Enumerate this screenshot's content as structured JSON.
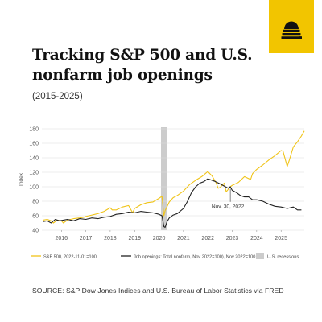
{
  "header": {
    "title": "Tracking S&P 500 and U.S. nonfarm job openings",
    "subtitle": "(2015-2025)"
  },
  "logo": {
    "icon": "beehive-icon",
    "background": "#f2c500"
  },
  "source": "SOURCE: S&P Dow Jones Indices and U.S. Bureau of Labor Statistics via FRED",
  "colors": {
    "sp500": "#f0c419",
    "jobs": "#222222",
    "recession": "#cccccc",
    "grid": "#d9d9d9",
    "axis_text": "#555555"
  },
  "chart_data": {
    "type": "line",
    "title": "",
    "xlabel": "",
    "ylabel": "Index",
    "xlim": [
      2015.2,
      2025.95
    ],
    "ylim": [
      40,
      180
    ],
    "yticks": [
      40,
      60,
      80,
      100,
      120,
      140,
      160,
      180
    ],
    "xticks": [
      {
        "label": "2016",
        "x": 2016.0
      },
      {
        "label": "2017",
        "x": 2017.0
      },
      {
        "label": "2018",
        "x": 2018.0
      },
      {
        "label": "2019",
        "x": 2019.0
      },
      {
        "label": "2020",
        "x": 2020.0
      },
      {
        "label": "2021",
        "x": 2021.0
      },
      {
        "label": "2022",
        "x": 2022.0
      },
      {
        "label": "2023",
        "x": 2023.0
      },
      {
        "label": "2024",
        "x": 2024.0
      },
      {
        "label": "2025",
        "x": 2025.0
      }
    ],
    "grid": true,
    "recessions": [
      {
        "label": "U.S. recessions",
        "start": 2020.08,
        "end": 2020.33
      }
    ],
    "annotations": [
      {
        "text": "Nov. 30, 2022",
        "x": 2022.92,
        "y": 97
      }
    ],
    "legend": {
      "position": "bottom",
      "items": [
        {
          "label": "S&P 500, 2022-11-01=100",
          "kind": "line",
          "series": 0
        },
        {
          "label": "Job openings: Total nonfarm, Nov 2022=100), Nov 2022=100",
          "kind": "line",
          "series": 1
        },
        {
          "label": "U.S. recessions",
          "kind": "box"
        }
      ]
    },
    "series": [
      {
        "name": "S&P 500, 2022-11-01=100",
        "x": [
          2015.25,
          2015.42,
          2015.58,
          2015.67,
          2015.83,
          2016.0,
          2016.08,
          2016.25,
          2016.5,
          2016.75,
          2016.92,
          2017.0,
          2017.25,
          2017.5,
          2017.75,
          2018.0,
          2018.08,
          2018.25,
          2018.5,
          2018.75,
          2018.92,
          2019.0,
          2019.25,
          2019.5,
          2019.75,
          2020.0,
          2020.12,
          2020.2,
          2020.25,
          2020.42,
          2020.58,
          2020.75,
          2021.0,
          2021.25,
          2021.5,
          2021.75,
          2022.0,
          2022.17,
          2022.33,
          2022.42,
          2022.5,
          2022.67,
          2022.75,
          2022.92,
          2023.0,
          2023.25,
          2023.5,
          2023.75,
          2023.83,
          2024.0,
          2024.25,
          2024.5,
          2024.75,
          2025.0,
          2025.08,
          2025.25,
          2025.33,
          2025.5,
          2025.67,
          2025.83,
          2025.95
        ],
        "y": [
          54,
          55,
          53,
          50,
          54,
          53,
          50,
          54,
          56,
          57,
          58,
          59,
          61,
          63,
          66,
          71,
          68,
          68,
          72,
          74,
          64,
          70,
          75,
          78,
          79,
          84,
          87,
          60,
          67,
          79,
          85,
          88,
          94,
          103,
          109,
          114,
          121,
          115,
          106,
          98,
          99,
          105,
          93,
          100,
          102,
          106,
          114,
          110,
          118,
          124,
          130,
          137,
          143,
          150,
          149,
          128,
          136,
          155,
          162,
          170,
          177
        ]
      },
      {
        "name": "Job openings: Total nonfarm, Nov 2022=100), Nov 2022=100",
        "x": [
          2015.25,
          2015.42,
          2015.58,
          2015.75,
          2015.92,
          2016.08,
          2016.25,
          2016.5,
          2016.75,
          2017.0,
          2017.25,
          2017.5,
          2017.75,
          2018.0,
          2018.25,
          2018.5,
          2018.75,
          2019.0,
          2019.25,
          2019.5,
          2019.75,
          2020.0,
          2020.12,
          2020.2,
          2020.25,
          2020.33,
          2020.42,
          2020.58,
          2020.75,
          2021.0,
          2021.17,
          2021.33,
          2021.5,
          2021.67,
          2021.83,
          2022.0,
          2022.25,
          2022.5,
          2022.67,
          2022.83,
          2022.92,
          2023.0,
          2023.17,
          2023.33,
          2023.5,
          2023.67,
          2023.83,
          2024.0,
          2024.25,
          2024.5,
          2024.75,
          2025.0,
          2025.25,
          2025.5,
          2025.67,
          2025.83
        ],
        "y": [
          52,
          53,
          50,
          55,
          53,
          54,
          55,
          53,
          56,
          55,
          57,
          56,
          58,
          59,
          62,
          63,
          65,
          64,
          66,
          65,
          64,
          62,
          60,
          45,
          44,
          52,
          57,
          61,
          63,
          70,
          80,
          92,
          100,
          105,
          107,
          111,
          108,
          104,
          101,
          98,
          100,
          95,
          92,
          88,
          86,
          86,
          82,
          82,
          80,
          76,
          73,
          72,
          70,
          72,
          68,
          68
        ]
      }
    ]
  }
}
